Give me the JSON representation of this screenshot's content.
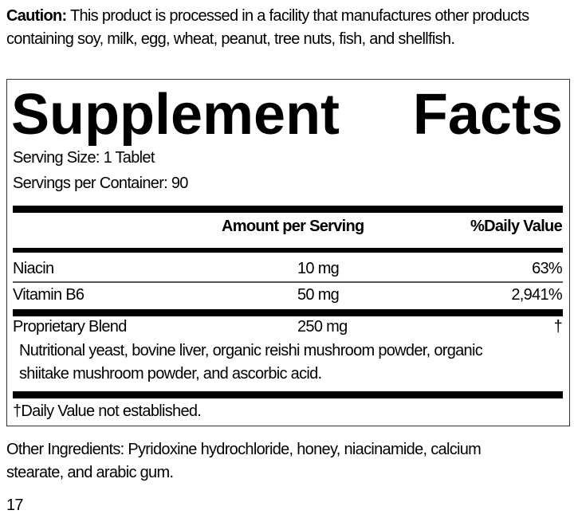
{
  "caution": {
    "label": "Caution:",
    "text": " This product is processed in a facility that manufactures other products containing soy, milk, egg, wheat, peanut, tree nuts, fish, and shellfish."
  },
  "facts": {
    "title_word1": "Supplement",
    "title_word2": "Facts",
    "serving_size": "Serving Size: 1 Tablet",
    "servings_per_container": "Servings per Container: 90",
    "header_amount": "Amount per Serving",
    "header_dv": "%Daily Value",
    "rows": [
      {
        "name": "Niacin",
        "amount": "10 mg",
        "dv": "63%"
      },
      {
        "name": "Vitamin B6",
        "amount": "50 mg",
        "dv": "2,941%"
      },
      {
        "name": "Proprietary Blend",
        "amount": "250 mg",
        "dv": "†"
      }
    ],
    "blend_line1": "Nutritional yeast, bovine liver, organic reishi mushroom powder, organic",
    "blend_line2": "shiitake mushroom powder, and ascorbic acid.",
    "footnote": "†Daily Value not established."
  },
  "other_ingredients": {
    "line1": "Other Ingredients: Pyridoxine hydrochloride, honey, niacinamide, calcium",
    "line2": "stearate, and arabic gum."
  },
  "page_number": "17"
}
